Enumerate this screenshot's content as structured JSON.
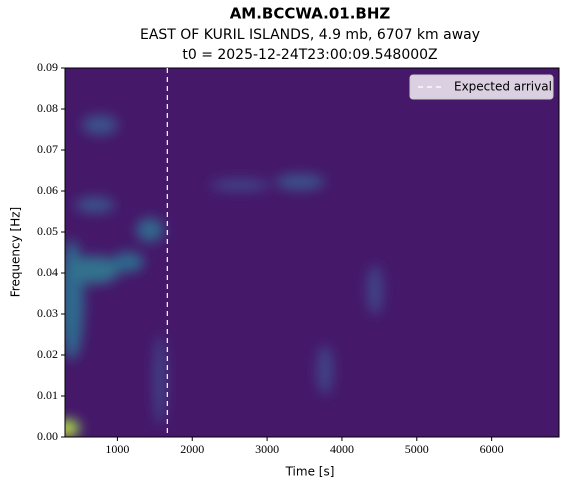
{
  "chart_data": {
    "type": "spectrogram",
    "title": "AM.BCCWA.01.BHZ",
    "subtitle": [
      "EAST OF KURIL ISLANDS, 4.9 mb, 6707 km away",
      "t0 = 2025-12-24T23:00:09.548000Z"
    ],
    "xlabel": "Time [s]",
    "ylabel": "Frequency [Hz]",
    "xlim": [
      300,
      6900
    ],
    "xticks": [
      1000,
      2000,
      3000,
      4000,
      5000,
      6000
    ],
    "ylim": [
      0,
      0.09
    ],
    "yticks": [
      {
        "value": 0,
        "label": "0.00"
      },
      {
        "value": 0.01,
        "label": "0.01"
      },
      {
        "value": 0.02,
        "label": "0.02"
      },
      {
        "value": 0.03,
        "label": "0.03"
      },
      {
        "value": 0.04,
        "label": "0.04"
      },
      {
        "value": 0.05,
        "label": "0.05"
      },
      {
        "value": 0.06,
        "label": "0.06"
      },
      {
        "value": 0.07,
        "label": "0.07"
      },
      {
        "value": 0.08,
        "label": "0.08"
      },
      {
        "value": 0.09,
        "label": "0.09"
      }
    ],
    "vlines": [
      {
        "name": "Expected arrival",
        "x": 1667,
        "color": "#ffffff"
      }
    ],
    "legend": "upper right"
  }
}
